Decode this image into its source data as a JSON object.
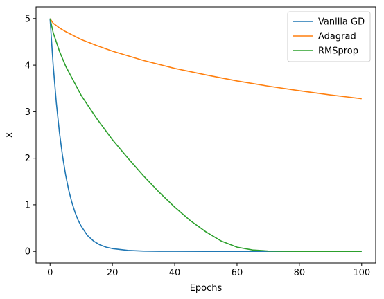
{
  "chart_data": {
    "type": "line",
    "title": "",
    "xlabel": "Epochs",
    "ylabel": "x",
    "xlim": [
      -4.5,
      104.5
    ],
    "ylim": [
      -0.25,
      5.25
    ],
    "xticks": [
      0,
      20,
      40,
      60,
      80,
      100
    ],
    "yticks": [
      0,
      1,
      2,
      3,
      4,
      5
    ],
    "grid": false,
    "legend_position": "top-right",
    "series": [
      {
        "name": "Vanilla GD",
        "color": "#1f77b4",
        "x": [
          0,
          1,
          2,
          3,
          4,
          5,
          6,
          7,
          8,
          9,
          10,
          12,
          14,
          16,
          18,
          20,
          25,
          30,
          35,
          40,
          50,
          60,
          70,
          80,
          90,
          100
        ],
        "y": [
          5.0,
          4.0,
          3.2,
          2.56,
          2.05,
          1.64,
          1.31,
          1.05,
          0.84,
          0.67,
          0.54,
          0.34,
          0.22,
          0.14,
          0.09,
          0.06,
          0.02,
          0.006,
          0.002,
          0.0007,
          0.0001,
          0,
          0,
          0,
          0,
          0
        ]
      },
      {
        "name": "Adagrad",
        "color": "#ff7f0e",
        "x": [
          0,
          1,
          2,
          3,
          5,
          10,
          15,
          20,
          30,
          40,
          50,
          60,
          70,
          80,
          90,
          100
        ],
        "y": [
          5.0,
          4.9,
          4.85,
          4.8,
          4.72,
          4.55,
          4.42,
          4.3,
          4.1,
          3.93,
          3.79,
          3.66,
          3.55,
          3.45,
          3.36,
          3.28
        ]
      },
      {
        "name": "RMSprop",
        "color": "#2ca02c",
        "x": [
          0,
          1,
          2,
          3,
          5,
          10,
          15,
          20,
          25,
          30,
          35,
          40,
          45,
          50,
          55,
          60,
          65,
          70,
          75,
          80,
          90,
          100
        ],
        "y": [
          5.0,
          4.7,
          4.5,
          4.3,
          3.98,
          3.35,
          2.85,
          2.4,
          2.0,
          1.62,
          1.27,
          0.95,
          0.66,
          0.42,
          0.22,
          0.09,
          0.03,
          0.008,
          0.002,
          0,
          0,
          0
        ]
      }
    ]
  }
}
